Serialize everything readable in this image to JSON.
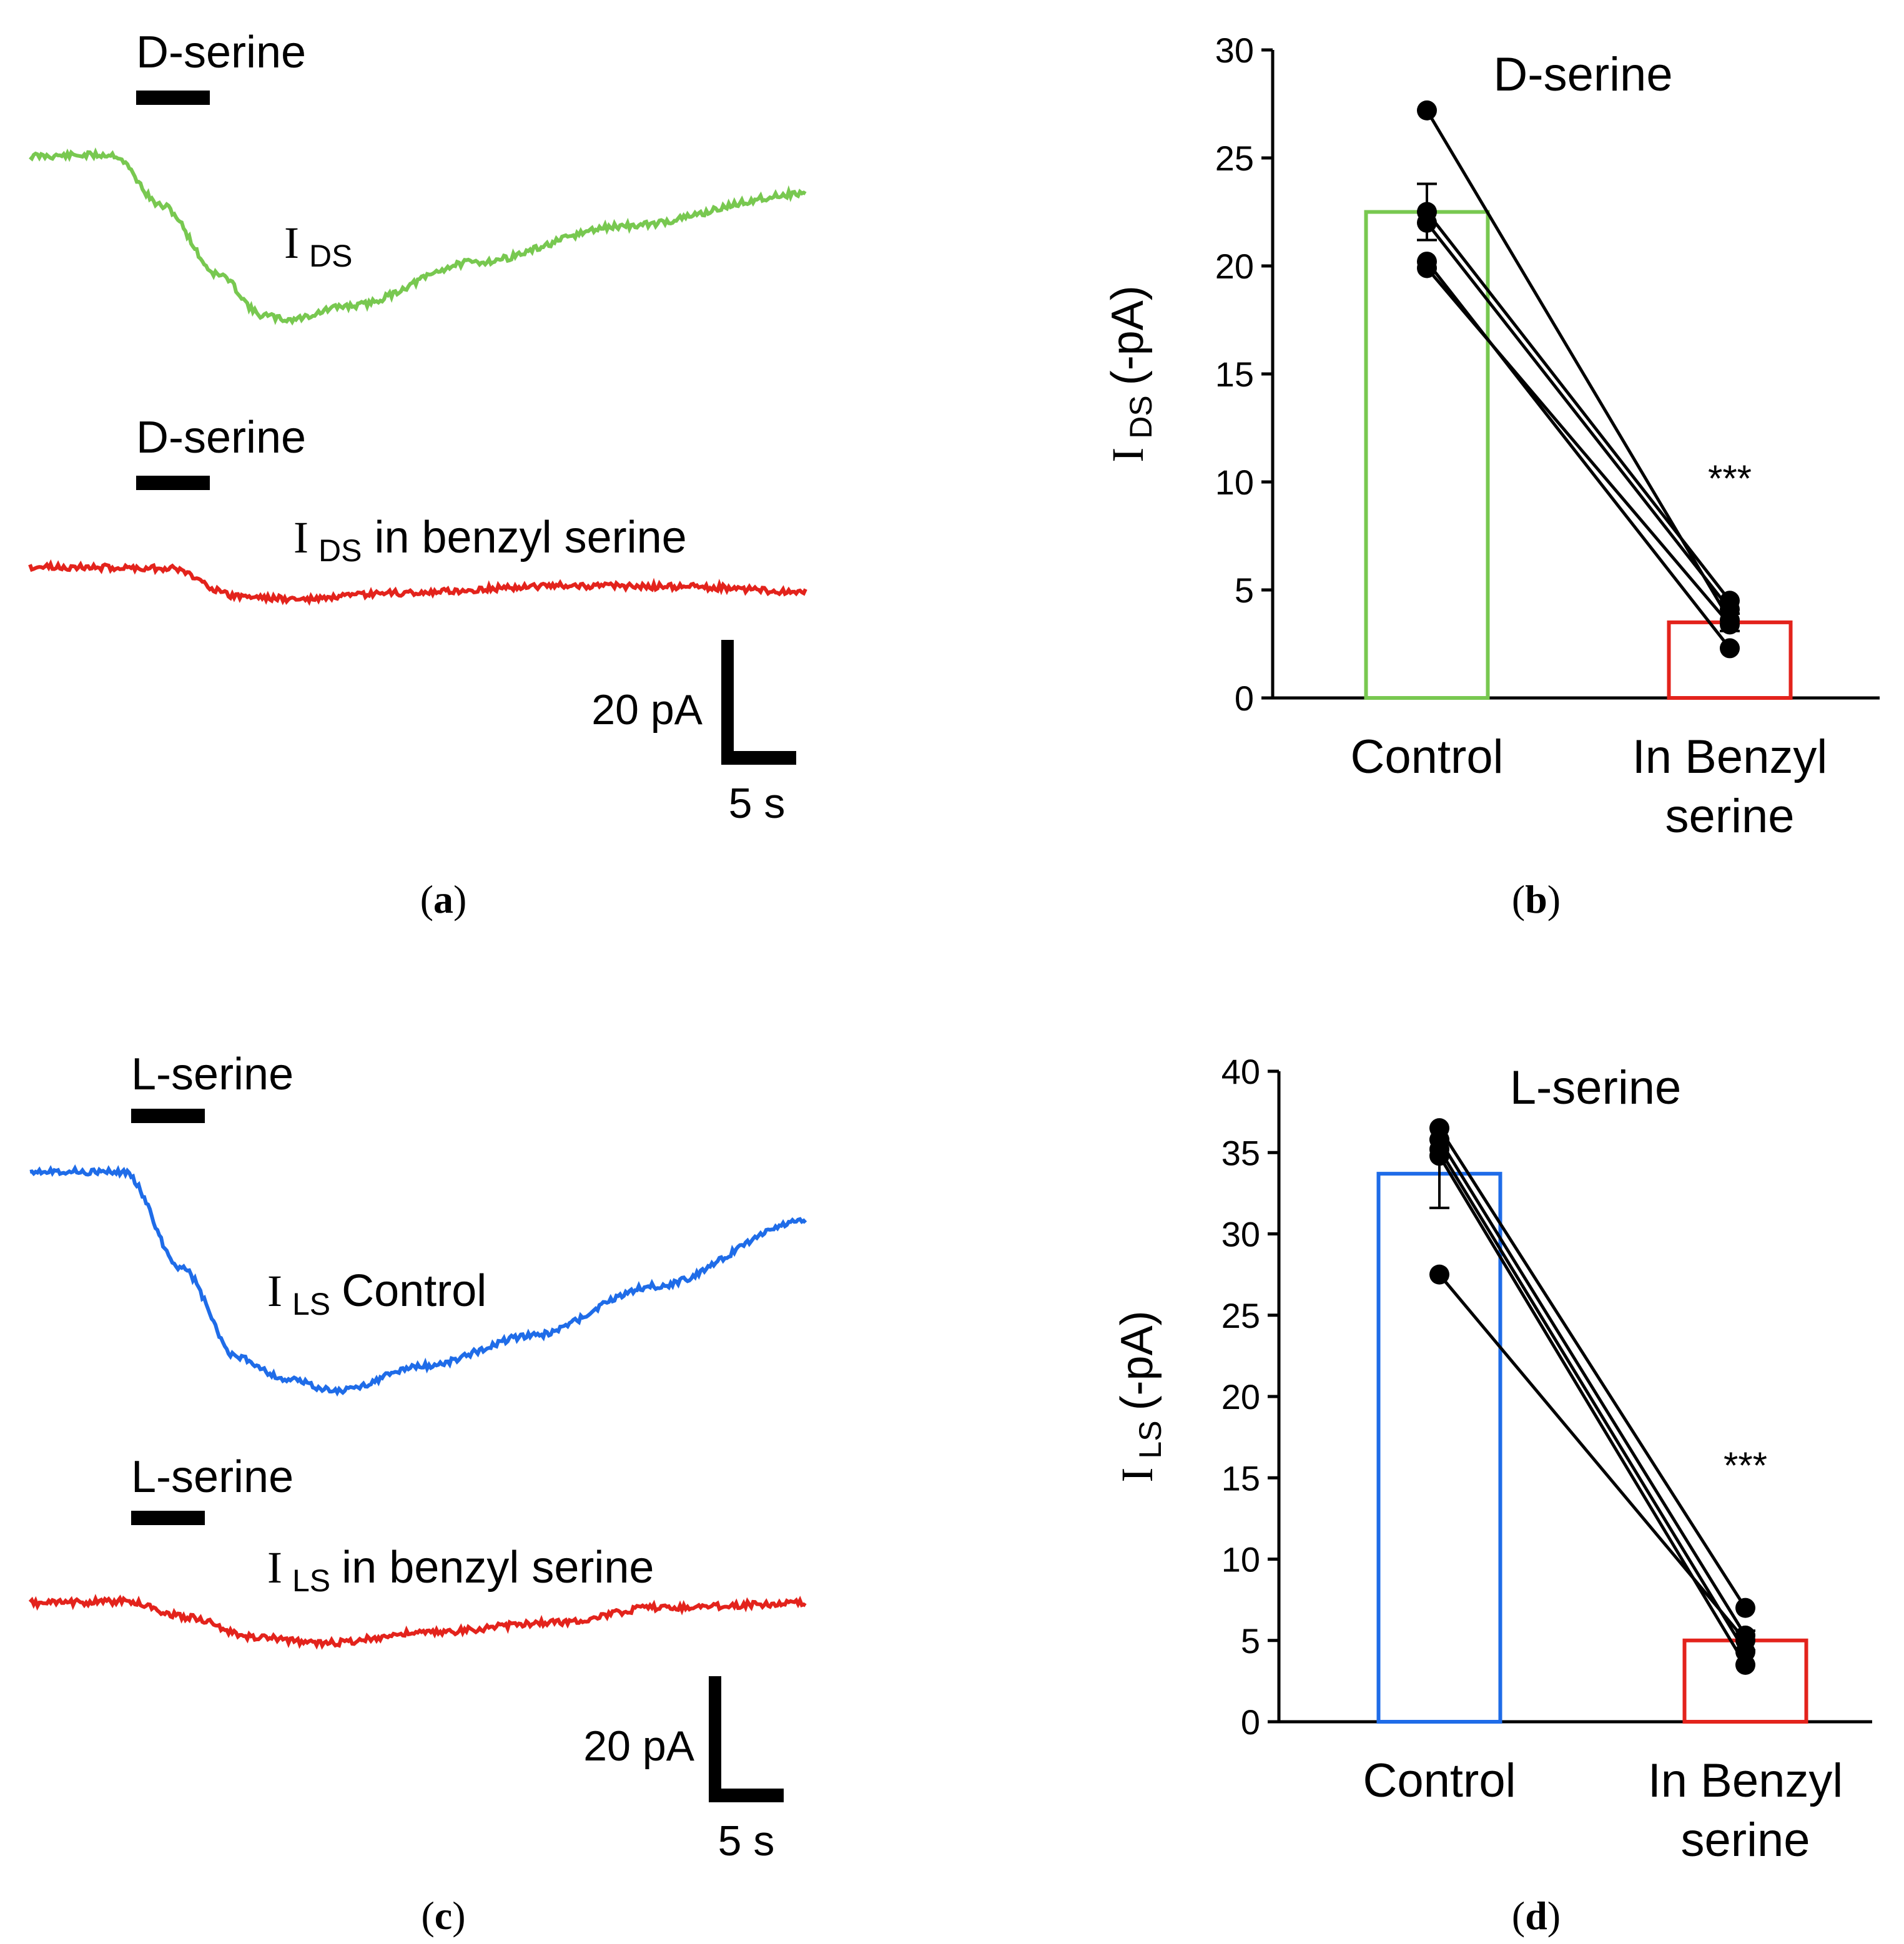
{
  "figure": {
    "panel_a": {
      "label": "(a)",
      "label_letter": "a",
      "trace_top": {
        "drug_label": "D-serine",
        "current_symbol": "I",
        "current_sub": "DS",
        "current_suffix": "",
        "color": "#78c850"
      },
      "trace_bottom": {
        "drug_label": "D-serine",
        "current_symbol": "I",
        "current_sub": "DS",
        "current_suffix": "in benzyl serine",
        "color": "#e3231c"
      },
      "scale_y": "20 pA",
      "scale_x": "5 s"
    },
    "panel_c": {
      "label": "(c)",
      "label_letter": "c",
      "trace_top": {
        "drug_label": "L-serine",
        "current_symbol": "I",
        "current_sub": "LS",
        "current_suffix": "Control",
        "color": "#1f6ce8"
      },
      "trace_bottom": {
        "drug_label": "L-serine",
        "current_symbol": "I",
        "current_sub": "LS",
        "current_suffix": "in benzyl serine",
        "color": "#e3231c"
      },
      "scale_y": "20 pA",
      "scale_x": "5 s"
    },
    "panel_b": {
      "label": "(b)",
      "label_letter": "b"
    },
    "panel_d": {
      "label": "(d)",
      "label_letter": "d"
    }
  },
  "chart_data": [
    {
      "id": "b",
      "type": "bar",
      "title": "D-serine",
      "ylabel_symbol": "I",
      "ylabel_sub": "DS",
      "ylabel_unit": "(-pA)",
      "categories": [
        "Control",
        "In Benzyl serine"
      ],
      "category_lines": [
        [
          "Control"
        ],
        [
          "In Benzyl",
          "serine"
        ]
      ],
      "values": [
        22.5,
        3.5
      ],
      "errors": [
        1.3,
        0.4
      ],
      "bar_colors": [
        "#78c850",
        "#e3231c"
      ],
      "ylim": [
        0,
        30
      ],
      "yticks": [
        0,
        5,
        10,
        15,
        20,
        25,
        30
      ],
      "paired": [
        [
          27.2,
          3.6
        ],
        [
          22.5,
          4.5
        ],
        [
          22.0,
          4.1
        ],
        [
          20.2,
          2.3
        ],
        [
          19.9,
          3.4
        ]
      ],
      "significance": "***"
    },
    {
      "id": "d",
      "type": "bar",
      "title": "L-serine",
      "ylabel_symbol": "I",
      "ylabel_sub": "LS",
      "ylabel_unit": "(-pA)",
      "categories": [
        "Control",
        "In Benzyl serine"
      ],
      "category_lines": [
        [
          "Control"
        ],
        [
          "In Benzyl",
          "serine"
        ]
      ],
      "values": [
        33.7,
        5.0
      ],
      "errors": [
        2.1,
        0.6
      ],
      "bar_colors": [
        "#1f6ce8",
        "#e3231c"
      ],
      "ylim": [
        0,
        40
      ],
      "yticks": [
        0,
        5,
        10,
        15,
        20,
        25,
        30,
        35,
        40
      ],
      "paired": [
        [
          36.5,
          7.0
        ],
        [
          35.8,
          5.3
        ],
        [
          35.2,
          4.3
        ],
        [
          34.8,
          3.5
        ],
        [
          27.5,
          5.0
        ]
      ],
      "significance": "***"
    }
  ]
}
